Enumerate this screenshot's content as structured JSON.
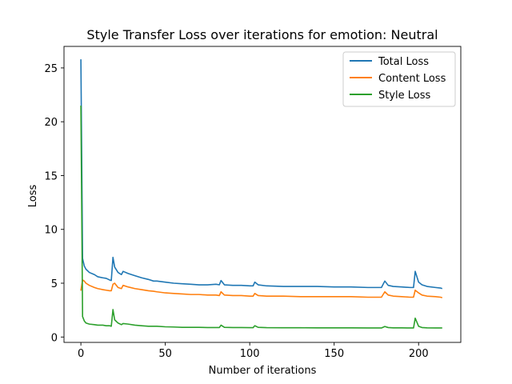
{
  "chart_data": {
    "type": "line",
    "title": "Style Transfer Loss over iterations for emotion: Neutral",
    "xlabel": "Number of iterations",
    "ylabel": "Loss",
    "xlim": [
      -10,
      225
    ],
    "ylim": [
      -0.5,
      27
    ],
    "xticks": [
      0,
      50,
      100,
      150,
      200
    ],
    "yticks": [
      0,
      5,
      10,
      15,
      20,
      25
    ],
    "grid": false,
    "legend": {
      "placement": "top-right"
    },
    "series": [
      {
        "name": "Total Loss",
        "color": "#1f77b4",
        "points": [
          [
            0,
            25.8
          ],
          [
            1,
            7.3
          ],
          [
            2,
            6.6
          ],
          [
            3,
            6.3
          ],
          [
            5,
            6.0
          ],
          [
            8,
            5.8
          ],
          [
            10,
            5.6
          ],
          [
            13,
            5.5
          ],
          [
            15,
            5.45
          ],
          [
            17,
            5.3
          ],
          [
            18,
            5.25
          ],
          [
            19,
            7.4
          ],
          [
            20,
            6.5
          ],
          [
            22,
            6.0
          ],
          [
            24,
            5.8
          ],
          [
            25,
            6.1
          ],
          [
            28,
            5.9
          ],
          [
            32,
            5.7
          ],
          [
            36,
            5.5
          ],
          [
            40,
            5.35
          ],
          [
            43,
            5.2
          ],
          [
            45,
            5.2
          ],
          [
            50,
            5.1
          ],
          [
            55,
            5.0
          ],
          [
            60,
            4.95
          ],
          [
            65,
            4.9
          ],
          [
            70,
            4.85
          ],
          [
            75,
            4.85
          ],
          [
            80,
            4.9
          ],
          [
            82,
            4.85
          ],
          [
            83,
            5.25
          ],
          [
            85,
            4.85
          ],
          [
            90,
            4.8
          ],
          [
            95,
            4.8
          ],
          [
            100,
            4.75
          ],
          [
            102,
            4.75
          ],
          [
            103,
            5.1
          ],
          [
            105,
            4.85
          ],
          [
            110,
            4.75
          ],
          [
            120,
            4.7
          ],
          [
            130,
            4.7
          ],
          [
            140,
            4.7
          ],
          [
            150,
            4.65
          ],
          [
            160,
            4.65
          ],
          [
            170,
            4.6
          ],
          [
            178,
            4.6
          ],
          [
            180,
            5.2
          ],
          [
            182,
            4.8
          ],
          [
            185,
            4.7
          ],
          [
            190,
            4.65
          ],
          [
            195,
            4.6
          ],
          [
            197,
            4.6
          ],
          [
            198,
            6.1
          ],
          [
            200,
            5.1
          ],
          [
            202,
            4.85
          ],
          [
            205,
            4.7
          ],
          [
            210,
            4.6
          ],
          [
            213,
            4.55
          ],
          [
            214,
            4.5
          ]
        ]
      },
      {
        "name": "Content Loss",
        "color": "#ff7f0e",
        "points": [
          [
            0,
            4.3
          ],
          [
            1,
            5.3
          ],
          [
            2,
            5.2
          ],
          [
            3,
            5.0
          ],
          [
            5,
            4.8
          ],
          [
            8,
            4.6
          ],
          [
            10,
            4.5
          ],
          [
            13,
            4.4
          ],
          [
            15,
            4.35
          ],
          [
            17,
            4.3
          ],
          [
            18,
            4.3
          ],
          [
            19,
            4.9
          ],
          [
            20,
            5.0
          ],
          [
            22,
            4.6
          ],
          [
            24,
            4.5
          ],
          [
            25,
            4.8
          ],
          [
            28,
            4.65
          ],
          [
            32,
            4.5
          ],
          [
            36,
            4.4
          ],
          [
            40,
            4.3
          ],
          [
            43,
            4.25
          ],
          [
            45,
            4.2
          ],
          [
            50,
            4.1
          ],
          [
            55,
            4.05
          ],
          [
            60,
            4.0
          ],
          [
            65,
            3.95
          ],
          [
            70,
            3.95
          ],
          [
            75,
            3.9
          ],
          [
            80,
            3.9
          ],
          [
            82,
            3.85
          ],
          [
            83,
            4.2
          ],
          [
            85,
            3.9
          ],
          [
            90,
            3.85
          ],
          [
            95,
            3.85
          ],
          [
            100,
            3.8
          ],
          [
            102,
            3.8
          ],
          [
            103,
            4.05
          ],
          [
            105,
            3.85
          ],
          [
            110,
            3.8
          ],
          [
            120,
            3.8
          ],
          [
            130,
            3.75
          ],
          [
            140,
            3.75
          ],
          [
            150,
            3.75
          ],
          [
            160,
            3.75
          ],
          [
            170,
            3.7
          ],
          [
            178,
            3.7
          ],
          [
            180,
            4.2
          ],
          [
            182,
            3.9
          ],
          [
            185,
            3.8
          ],
          [
            190,
            3.75
          ],
          [
            195,
            3.7
          ],
          [
            197,
            3.7
          ],
          [
            198,
            4.35
          ],
          [
            200,
            4.1
          ],
          [
            202,
            3.9
          ],
          [
            205,
            3.8
          ],
          [
            210,
            3.75
          ],
          [
            213,
            3.7
          ],
          [
            214,
            3.65
          ]
        ]
      },
      {
        "name": "Style Loss",
        "color": "#2ca02c",
        "points": [
          [
            0,
            21.5
          ],
          [
            1,
            1.9
          ],
          [
            2,
            1.5
          ],
          [
            3,
            1.3
          ],
          [
            5,
            1.2
          ],
          [
            8,
            1.15
          ],
          [
            10,
            1.1
          ],
          [
            13,
            1.1
          ],
          [
            15,
            1.05
          ],
          [
            17,
            1.05
          ],
          [
            18,
            1.0
          ],
          [
            19,
            2.55
          ],
          [
            20,
            1.6
          ],
          [
            22,
            1.3
          ],
          [
            24,
            1.15
          ],
          [
            25,
            1.25
          ],
          [
            28,
            1.2
          ],
          [
            32,
            1.1
          ],
          [
            36,
            1.05
          ],
          [
            40,
            1.0
          ],
          [
            45,
            1.0
          ],
          [
            50,
            0.95
          ],
          [
            55,
            0.93
          ],
          [
            60,
            0.9
          ],
          [
            65,
            0.9
          ],
          [
            70,
            0.9
          ],
          [
            75,
            0.88
          ],
          [
            80,
            0.88
          ],
          [
            82,
            0.88
          ],
          [
            83,
            1.1
          ],
          [
            85,
            0.9
          ],
          [
            90,
            0.88
          ],
          [
            95,
            0.88
          ],
          [
            100,
            0.87
          ],
          [
            102,
            0.87
          ],
          [
            103,
            1.05
          ],
          [
            105,
            0.9
          ],
          [
            110,
            0.87
          ],
          [
            120,
            0.86
          ],
          [
            130,
            0.86
          ],
          [
            140,
            0.85
          ],
          [
            150,
            0.85
          ],
          [
            160,
            0.85
          ],
          [
            170,
            0.84
          ],
          [
            178,
            0.84
          ],
          [
            180,
            0.98
          ],
          [
            182,
            0.88
          ],
          [
            185,
            0.85
          ],
          [
            190,
            0.85
          ],
          [
            195,
            0.84
          ],
          [
            197,
            0.84
          ],
          [
            198,
            1.75
          ],
          [
            200,
            1.0
          ],
          [
            202,
            0.88
          ],
          [
            205,
            0.85
          ],
          [
            210,
            0.84
          ],
          [
            214,
            0.84
          ]
        ]
      }
    ]
  }
}
